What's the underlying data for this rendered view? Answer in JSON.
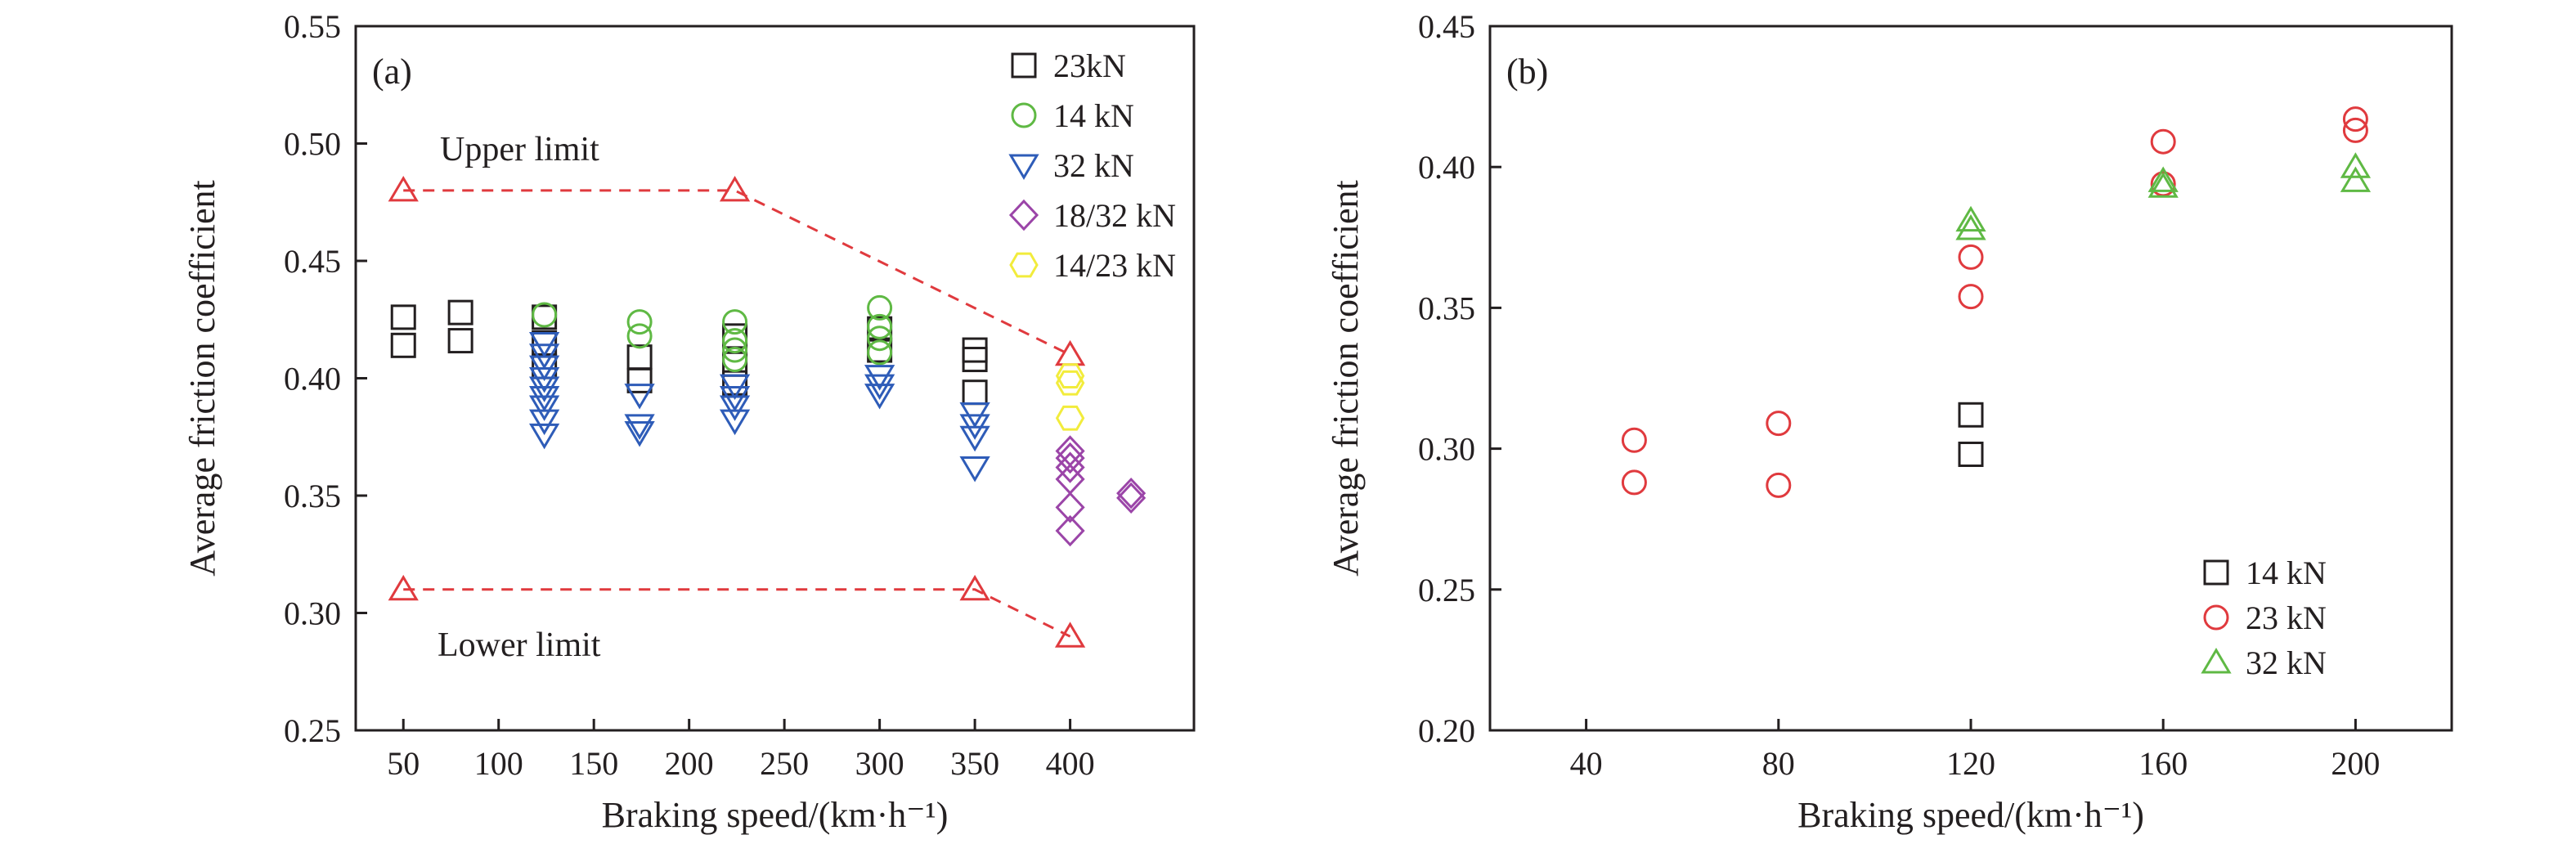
{
  "chart_data": [
    {
      "type": "scatter",
      "panel_label": "(a)",
      "xlabel": "Braking speed/(km·h⁻¹)",
      "ylabel": "Average friction coefficient",
      "xlim": [
        25,
        465
      ],
      "ylim": [
        0.25,
        0.55
      ],
      "xticks": [
        "50",
        "100",
        "150",
        "200",
        "250",
        "300",
        "350",
        "400"
      ],
      "xtick_values": [
        50,
        100,
        150,
        200,
        250,
        300,
        350,
        400
      ],
      "yticks": [
        "0.25",
        "0.30",
        "0.35",
        "0.40",
        "0.45",
        "0.50",
        "0.55"
      ],
      "ytick_values": [
        0.25,
        0.3,
        0.35,
        0.4,
        0.45,
        0.5,
        0.55
      ],
      "legend_position": "top-right",
      "series": [
        {
          "name": "23kN",
          "marker": "square",
          "color": "#231f20",
          "points": [
            [
              50,
              0.426
            ],
            [
              50,
              0.414
            ],
            [
              80,
              0.428
            ],
            [
              80,
              0.416
            ],
            [
              124,
              0.426
            ],
            [
              124,
              0.415
            ],
            [
              124,
              0.405
            ],
            [
              174,
              0.409
            ],
            [
              174,
              0.399
            ],
            [
              224,
              0.418
            ],
            [
              224,
              0.406
            ],
            [
              224,
              0.398
            ],
            [
              300,
              0.421
            ],
            [
              300,
              0.412
            ],
            [
              350,
              0.412
            ],
            [
              350,
              0.408
            ],
            [
              350,
              0.394
            ]
          ]
        },
        {
          "name": "14 kN",
          "marker": "circle",
          "color": "#5fb944",
          "points": [
            [
              124,
              0.427
            ],
            [
              174,
              0.424
            ],
            [
              174,
              0.418
            ],
            [
              224,
              0.424
            ],
            [
              224,
              0.416
            ],
            [
              224,
              0.412
            ],
            [
              224,
              0.408
            ],
            [
              300,
              0.43
            ],
            [
              300,
              0.422
            ],
            [
              300,
              0.417
            ],
            [
              300,
              0.411
            ]
          ]
        },
        {
          "name": "32 kN",
          "marker": "triangle-down",
          "color": "#2e5cb8",
          "points": [
            [
              124,
              0.415
            ],
            [
              124,
              0.41
            ],
            [
              124,
              0.405
            ],
            [
              124,
              0.4
            ],
            [
              124,
              0.396
            ],
            [
              124,
              0.392
            ],
            [
              124,
              0.388
            ],
            [
              124,
              0.382
            ],
            [
              124,
              0.376
            ],
            [
              174,
              0.393
            ],
            [
              174,
              0.38
            ],
            [
              174,
              0.377
            ],
            [
              224,
              0.397
            ],
            [
              224,
              0.392
            ],
            [
              224,
              0.388
            ],
            [
              224,
              0.382
            ],
            [
              300,
              0.401
            ],
            [
              300,
              0.397
            ],
            [
              300,
              0.393
            ],
            [
              350,
              0.385
            ],
            [
              350,
              0.38
            ],
            [
              350,
              0.375
            ],
            [
              350,
              0.362
            ]
          ]
        },
        {
          "name": "18/32 kN",
          "marker": "diamond",
          "color": "#9b45a8",
          "points": [
            [
              400,
              0.369
            ],
            [
              400,
              0.366
            ],
            [
              400,
              0.362
            ],
            [
              400,
              0.357
            ],
            [
              400,
              0.345
            ],
            [
              400,
              0.335
            ],
            [
              432,
              0.351
            ],
            [
              432,
              0.349
            ]
          ]
        },
        {
          "name": "14/23 kN",
          "marker": "hexagon",
          "color": "#f2ec3c",
          "points": [
            [
              400,
              0.401
            ],
            [
              400,
              0.398
            ],
            [
              400,
              0.383
            ]
          ]
        }
      ],
      "limit_lines": [
        {
          "label": "Upper limit",
          "points": [
            [
              50,
              0.48
            ],
            [
              224,
              0.48
            ],
            [
              400,
              0.41
            ]
          ]
        },
        {
          "label": "Lower limit",
          "points": [
            [
              50,
              0.31
            ],
            [
              350,
              0.31
            ],
            [
              400,
              0.29
            ]
          ]
        }
      ]
    },
    {
      "type": "scatter",
      "panel_label": "(b)",
      "xlabel": "Braking speed/(km·h⁻¹)",
      "ylabel": "Average friction coefficient",
      "xlim": [
        20,
        220
      ],
      "ylim": [
        0.2,
        0.45
      ],
      "xticks": [
        "40",
        "80",
        "120",
        "160",
        "200"
      ],
      "xtick_values": [
        40,
        80,
        120,
        160,
        200
      ],
      "yticks": [
        "0.20",
        "0.25",
        "0.30",
        "0.35",
        "0.40",
        "0.45"
      ],
      "ytick_values": [
        0.2,
        0.25,
        0.3,
        0.35,
        0.4,
        0.45
      ],
      "legend_position": "bottom-right",
      "series": [
        {
          "name": "14 kN",
          "marker": "square",
          "color": "#231f20",
          "points": [
            [
              120,
              0.312
            ],
            [
              120,
              0.298
            ]
          ]
        },
        {
          "name": "23 kN",
          "marker": "circle",
          "color": "#e03a3e",
          "points": [
            [
              50,
              0.303
            ],
            [
              50,
              0.288
            ],
            [
              80,
              0.309
            ],
            [
              80,
              0.287
            ],
            [
              120,
              0.368
            ],
            [
              120,
              0.354
            ],
            [
              160,
              0.409
            ],
            [
              160,
              0.394
            ],
            [
              200,
              0.417
            ],
            [
              200,
              0.413
            ]
          ]
        },
        {
          "name": "32 kN",
          "marker": "triangle-up",
          "color": "#5fb944",
          "points": [
            [
              120,
              0.381
            ],
            [
              120,
              0.378
            ],
            [
              160,
              0.395
            ],
            [
              160,
              0.393
            ],
            [
              200,
              0.4
            ],
            [
              200,
              0.395
            ]
          ]
        }
      ]
    }
  ],
  "colors": {
    "axis": "#231f20",
    "limit_line": "#e03a3e"
  }
}
